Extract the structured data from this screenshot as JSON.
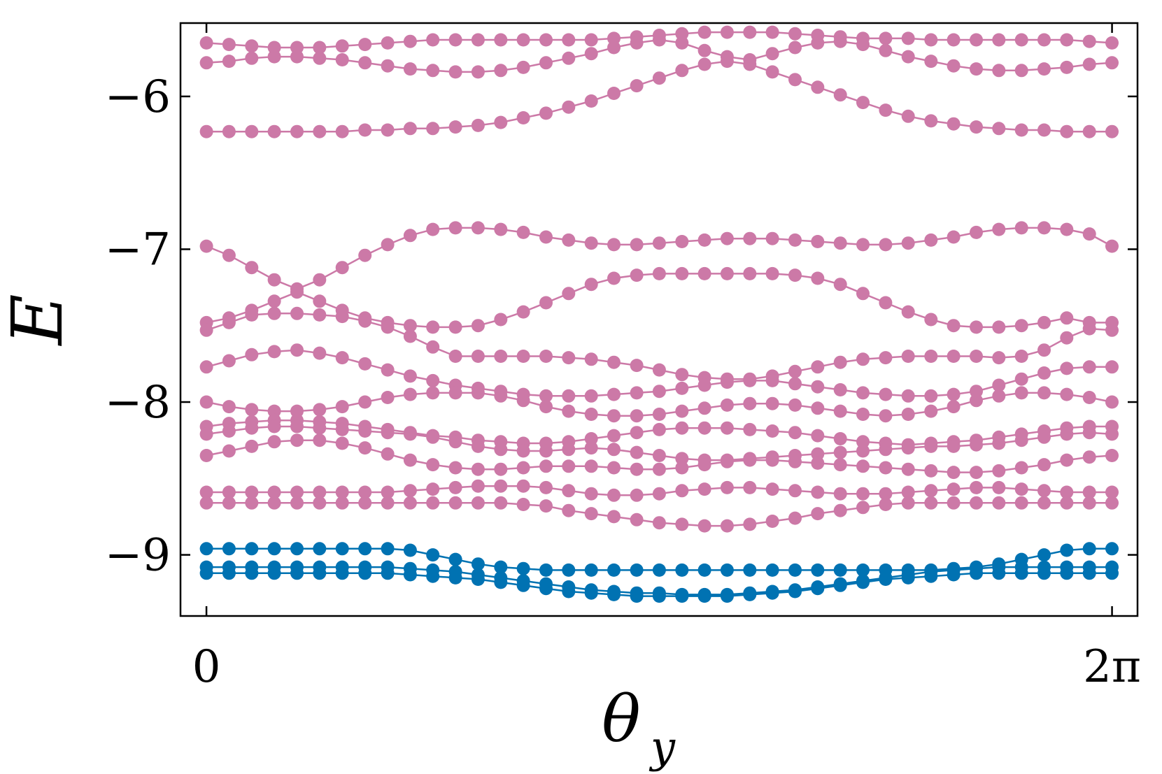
{
  "chart_data": {
    "type": "line",
    "title": "",
    "xlabel": "θ",
    "xlabel_subscript": "y",
    "ylabel": "E",
    "xlim": [
      -0.18,
      6.46
    ],
    "ylim": [
      -9.4,
      -5.52
    ],
    "xticks": [
      {
        "value": 0,
        "label": "0"
      },
      {
        "value": 6.2832,
        "label": "2π"
      }
    ],
    "yticks": [
      {
        "value": -6,
        "label": "−6"
      },
      {
        "value": -7,
        "label": "−7"
      },
      {
        "value": -8,
        "label": "−8"
      },
      {
        "value": -9,
        "label": "−9"
      }
    ],
    "grid": false,
    "legend": "none",
    "colors": {
      "upper_bands": "#cc79a7",
      "lower_bands": "#0072b2",
      "axis": "#000000"
    },
    "x": [
      0,
      0.157,
      0.314,
      0.471,
      0.628,
      0.785,
      0.942,
      1.1,
      1.257,
      1.414,
      1.571,
      1.728,
      1.885,
      2.042,
      2.199,
      2.356,
      2.513,
      2.67,
      2.827,
      2.985,
      3.142,
      3.299,
      3.456,
      3.613,
      3.77,
      3.927,
      4.084,
      4.241,
      4.398,
      4.555,
      4.712,
      4.869,
      5.027,
      5.184,
      5.341,
      5.498,
      5.655,
      5.812,
      5.969,
      6.126,
      6.283
    ],
    "series": [
      {
        "group": "upper",
        "values": [
          -5.65,
          -5.66,
          -5.67,
          -5.68,
          -5.68,
          -5.68,
          -5.67,
          -5.66,
          -5.65,
          -5.64,
          -5.63,
          -5.63,
          -5.63,
          -5.63,
          -5.63,
          -5.63,
          -5.63,
          -5.63,
          -5.62,
          -5.61,
          -5.6,
          -5.59,
          -5.58,
          -5.58,
          -5.58,
          -5.58,
          -5.59,
          -5.6,
          -5.61,
          -5.62,
          -5.62,
          -5.62,
          -5.63,
          -5.63,
          -5.63,
          -5.63,
          -5.63,
          -5.63,
          -5.63,
          -5.64,
          -5.65
        ]
      },
      {
        "group": "upper",
        "values": [
          -5.78,
          -5.77,
          -5.75,
          -5.74,
          -5.74,
          -5.75,
          -5.76,
          -5.78,
          -5.8,
          -5.82,
          -5.83,
          -5.84,
          -5.84,
          -5.83,
          -5.81,
          -5.78,
          -5.75,
          -5.72,
          -5.68,
          -5.65,
          -5.63,
          -5.65,
          -5.7,
          -5.74,
          -5.76,
          -5.72,
          -5.68,
          -5.65,
          -5.64,
          -5.66,
          -5.7,
          -5.74,
          -5.77,
          -5.8,
          -5.82,
          -5.83,
          -5.83,
          -5.82,
          -5.81,
          -5.79,
          -5.78
        ]
      },
      {
        "group": "upper",
        "values": [
          -6.23,
          -6.23,
          -6.23,
          -6.23,
          -6.23,
          -6.23,
          -6.23,
          -6.22,
          -6.22,
          -6.21,
          -6.21,
          -6.2,
          -6.19,
          -6.17,
          -6.14,
          -6.11,
          -6.07,
          -6.03,
          -5.98,
          -5.93,
          -5.88,
          -5.83,
          -5.79,
          -5.77,
          -5.79,
          -5.84,
          -5.89,
          -5.94,
          -5.99,
          -6.04,
          -6.09,
          -6.13,
          -6.16,
          -6.18,
          -6.2,
          -6.21,
          -6.22,
          -6.22,
          -6.23,
          -6.23,
          -6.23
        ]
      },
      {
        "group": "upper",
        "values": [
          -6.98,
          -7.04,
          -7.12,
          -7.2,
          -7.26,
          -7.2,
          -7.12,
          -7.04,
          -6.97,
          -6.91,
          -6.87,
          -6.86,
          -6.86,
          -6.87,
          -6.89,
          -6.92,
          -6.94,
          -6.96,
          -6.97,
          -6.97,
          -6.96,
          -6.95,
          -6.94,
          -6.93,
          -6.93,
          -6.93,
          -6.94,
          -6.95,
          -6.96,
          -6.97,
          -6.97,
          -6.96,
          -6.94,
          -6.92,
          -6.89,
          -6.87,
          -6.86,
          -6.86,
          -6.87,
          -6.9,
          -6.98
        ]
      },
      {
        "group": "upper",
        "values": [
          -7.48,
          -7.45,
          -7.4,
          -7.34,
          -7.28,
          -7.34,
          -7.4,
          -7.45,
          -7.48,
          -7.5,
          -7.51,
          -7.51,
          -7.5,
          -7.46,
          -7.41,
          -7.35,
          -7.29,
          -7.23,
          -7.19,
          -7.17,
          -7.16,
          -7.16,
          -7.16,
          -7.16,
          -7.16,
          -7.16,
          -7.17,
          -7.19,
          -7.23,
          -7.29,
          -7.35,
          -7.41,
          -7.46,
          -7.5,
          -7.51,
          -7.51,
          -7.5,
          -7.48,
          -7.45,
          -7.48,
          -7.48
        ]
      },
      {
        "group": "upper",
        "values": [
          -7.53,
          -7.48,
          -7.43,
          -7.42,
          -7.42,
          -7.43,
          -7.44,
          -7.47,
          -7.51,
          -7.57,
          -7.64,
          -7.7,
          -7.7,
          -7.7,
          -7.7,
          -7.7,
          -7.71,
          -7.72,
          -7.74,
          -7.76,
          -7.79,
          -7.82,
          -7.84,
          -7.85,
          -7.85,
          -7.83,
          -7.8,
          -7.77,
          -7.74,
          -7.72,
          -7.71,
          -7.7,
          -7.7,
          -7.7,
          -7.7,
          -7.71,
          -7.7,
          -7.66,
          -7.58,
          -7.52,
          -7.53
        ]
      },
      {
        "group": "upper",
        "values": [
          -7.77,
          -7.73,
          -7.69,
          -7.67,
          -7.66,
          -7.68,
          -7.71,
          -7.75,
          -7.79,
          -7.83,
          -7.86,
          -7.89,
          -7.91,
          -7.93,
          -7.95,
          -7.96,
          -7.96,
          -7.96,
          -7.95,
          -7.94,
          -7.93,
          -7.91,
          -7.89,
          -7.87,
          -7.86,
          -7.86,
          -7.88,
          -7.9,
          -7.92,
          -7.94,
          -7.95,
          -7.96,
          -7.96,
          -7.95,
          -7.93,
          -7.89,
          -7.85,
          -7.81,
          -7.78,
          -7.77,
          -7.77
        ]
      },
      {
        "group": "upper",
        "values": [
          -8.0,
          -8.03,
          -8.05,
          -8.06,
          -8.06,
          -8.05,
          -8.03,
          -8.0,
          -7.97,
          -7.95,
          -7.94,
          -7.94,
          -7.94,
          -7.96,
          -7.99,
          -8.03,
          -8.06,
          -8.08,
          -8.09,
          -8.09,
          -8.08,
          -8.06,
          -8.04,
          -8.02,
          -8.01,
          -8.01,
          -8.02,
          -8.04,
          -8.06,
          -8.08,
          -8.09,
          -8.08,
          -8.06,
          -8.03,
          -7.99,
          -7.96,
          -7.94,
          -7.94,
          -7.95,
          -7.97,
          -8.0
        ]
      },
      {
        "group": "upper",
        "values": [
          -8.16,
          -8.14,
          -8.13,
          -8.12,
          -8.12,
          -8.13,
          -8.14,
          -8.16,
          -8.18,
          -8.2,
          -8.22,
          -8.23,
          -8.25,
          -8.26,
          -8.27,
          -8.27,
          -8.26,
          -8.24,
          -8.22,
          -8.2,
          -8.18,
          -8.17,
          -8.17,
          -8.17,
          -8.18,
          -8.19,
          -8.2,
          -8.22,
          -8.24,
          -8.26,
          -8.27,
          -8.28,
          -8.27,
          -8.26,
          -8.25,
          -8.23,
          -8.21,
          -8.19,
          -8.17,
          -8.16,
          -8.16
        ]
      },
      {
        "group": "upper",
        "values": [
          -8.21,
          -8.19,
          -8.17,
          -8.16,
          -8.16,
          -8.17,
          -8.18,
          -8.19,
          -8.2,
          -8.21,
          -8.23,
          -8.26,
          -8.29,
          -8.31,
          -8.32,
          -8.32,
          -8.31,
          -8.3,
          -8.31,
          -8.33,
          -8.35,
          -8.37,
          -8.38,
          -8.38,
          -8.37,
          -8.36,
          -8.35,
          -8.34,
          -8.33,
          -8.32,
          -8.31,
          -8.3,
          -8.29,
          -8.29,
          -8.28,
          -8.27,
          -8.25,
          -8.23,
          -8.21,
          -8.2,
          -8.21
        ]
      },
      {
        "group": "upper",
        "values": [
          -8.35,
          -8.32,
          -8.29,
          -8.26,
          -8.25,
          -8.25,
          -8.27,
          -8.3,
          -8.34,
          -8.38,
          -8.41,
          -8.43,
          -8.44,
          -8.44,
          -8.43,
          -8.42,
          -8.42,
          -8.42,
          -8.43,
          -8.44,
          -8.44,
          -8.43,
          -8.41,
          -8.39,
          -8.38,
          -8.38,
          -8.39,
          -8.4,
          -8.41,
          -8.42,
          -8.43,
          -8.44,
          -8.45,
          -8.46,
          -8.46,
          -8.45,
          -8.43,
          -8.41,
          -8.38,
          -8.36,
          -8.35
        ]
      },
      {
        "group": "upper",
        "values": [
          -8.59,
          -8.59,
          -8.59,
          -8.59,
          -8.59,
          -8.59,
          -8.59,
          -8.59,
          -8.59,
          -8.58,
          -8.57,
          -8.56,
          -8.55,
          -8.55,
          -8.55,
          -8.56,
          -8.58,
          -8.6,
          -8.61,
          -8.61,
          -8.6,
          -8.58,
          -8.57,
          -8.56,
          -8.56,
          -8.57,
          -8.58,
          -8.59,
          -8.6,
          -8.6,
          -8.6,
          -8.59,
          -8.58,
          -8.57,
          -8.56,
          -8.56,
          -8.57,
          -8.58,
          -8.59,
          -8.59,
          -8.59
        ]
      },
      {
        "group": "upper",
        "values": [
          -8.66,
          -8.66,
          -8.66,
          -8.66,
          -8.66,
          -8.66,
          -8.66,
          -8.66,
          -8.66,
          -8.66,
          -8.66,
          -8.66,
          -8.66,
          -8.66,
          -8.67,
          -8.68,
          -8.71,
          -8.73,
          -8.75,
          -8.77,
          -8.79,
          -8.8,
          -8.81,
          -8.81,
          -8.8,
          -8.78,
          -8.76,
          -8.73,
          -8.71,
          -8.69,
          -8.67,
          -8.66,
          -8.66,
          -8.66,
          -8.66,
          -8.66,
          -8.66,
          -8.66,
          -8.66,
          -8.66,
          -8.66
        ]
      },
      {
        "group": "lower",
        "values": [
          -8.96,
          -8.96,
          -8.96,
          -8.96,
          -8.96,
          -8.96,
          -8.96,
          -8.96,
          -8.96,
          -8.97,
          -9.0,
          -9.03,
          -9.06,
          -9.08,
          -9.09,
          -9.1,
          -9.1,
          -9.1,
          -9.1,
          -9.1,
          -9.1,
          -9.1,
          -9.1,
          -9.1,
          -9.1,
          -9.1,
          -9.1,
          -9.1,
          -9.1,
          -9.1,
          -9.1,
          -9.1,
          -9.1,
          -9.09,
          -9.08,
          -9.06,
          -9.03,
          -9.0,
          -8.97,
          -8.96,
          -8.96
        ]
      },
      {
        "group": "lower",
        "values": [
          -9.08,
          -9.08,
          -9.08,
          -9.08,
          -9.08,
          -9.08,
          -9.08,
          -9.08,
          -9.08,
          -9.09,
          -9.1,
          -9.11,
          -9.13,
          -9.15,
          -9.17,
          -9.19,
          -9.21,
          -9.23,
          -9.24,
          -9.25,
          -9.25,
          -9.26,
          -9.26,
          -9.26,
          -9.25,
          -9.24,
          -9.23,
          -9.21,
          -9.19,
          -9.17,
          -9.15,
          -9.13,
          -9.11,
          -9.1,
          -9.09,
          -9.08,
          -9.08,
          -9.08,
          -9.08,
          -9.08,
          -9.08
        ]
      },
      {
        "group": "lower",
        "values": [
          -9.12,
          -9.12,
          -9.12,
          -9.12,
          -9.12,
          -9.12,
          -9.12,
          -9.12,
          -9.12,
          -9.13,
          -9.14,
          -9.15,
          -9.16,
          -9.18,
          -9.2,
          -9.22,
          -9.24,
          -9.25,
          -9.26,
          -9.27,
          -9.27,
          -9.27,
          -9.27,
          -9.27,
          -9.26,
          -9.25,
          -9.24,
          -9.22,
          -9.2,
          -9.18,
          -9.16,
          -9.15,
          -9.14,
          -9.13,
          -9.12,
          -9.12,
          -9.12,
          -9.12,
          -9.12,
          -9.12,
          -9.12
        ]
      }
    ]
  }
}
